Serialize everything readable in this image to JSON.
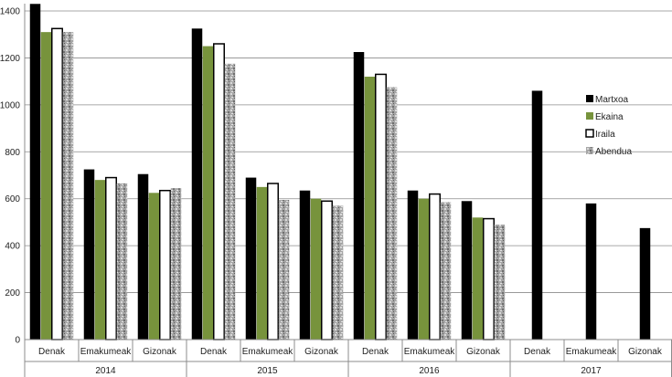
{
  "chart_data": {
    "type": "bar",
    "y_ticks": [
      "0",
      "200",
      "400",
      "600",
      "800",
      "1000",
      "1200",
      "1400"
    ],
    "ylim": [
      0,
      1400
    ],
    "grid": true,
    "legend_position": "right",
    "groups": [
      {
        "label": "2014",
        "categories": [
          "Denak",
          "Emakumeak",
          "Gizonak"
        ]
      },
      {
        "label": "2015",
        "categories": [
          "Denak",
          "Emakumeak",
          "Gizonak"
        ]
      },
      {
        "label": "2016",
        "categories": [
          "Denak",
          "Emakumeak",
          "Gizonak"
        ]
      },
      {
        "label": "2017",
        "categories": [
          "Denak",
          "Emakumeak",
          "Gizonak"
        ]
      }
    ],
    "series": [
      {
        "name": "Martxoa",
        "color": "#000000",
        "values": [
          1430,
          725,
          705,
          1325,
          690,
          635,
          1225,
          635,
          590,
          1060,
          580,
          475
        ]
      },
      {
        "name": "Ekaina",
        "color": "#77933c",
        "values": [
          1310,
          680,
          625,
          1250,
          650,
          600,
          1120,
          600,
          520,
          null,
          null,
          null
        ]
      },
      {
        "name": "Iraila",
        "color": "#ffffff",
        "values": [
          1325,
          690,
          635,
          1260,
          665,
          590,
          1130,
          620,
          515,
          null,
          null,
          null
        ]
      },
      {
        "name": "Abendua",
        "color": "#a6a6a6",
        "values": [
          1310,
          665,
          645,
          1175,
          595,
          570,
          1075,
          585,
          490,
          null,
          null,
          null
        ]
      }
    ]
  }
}
